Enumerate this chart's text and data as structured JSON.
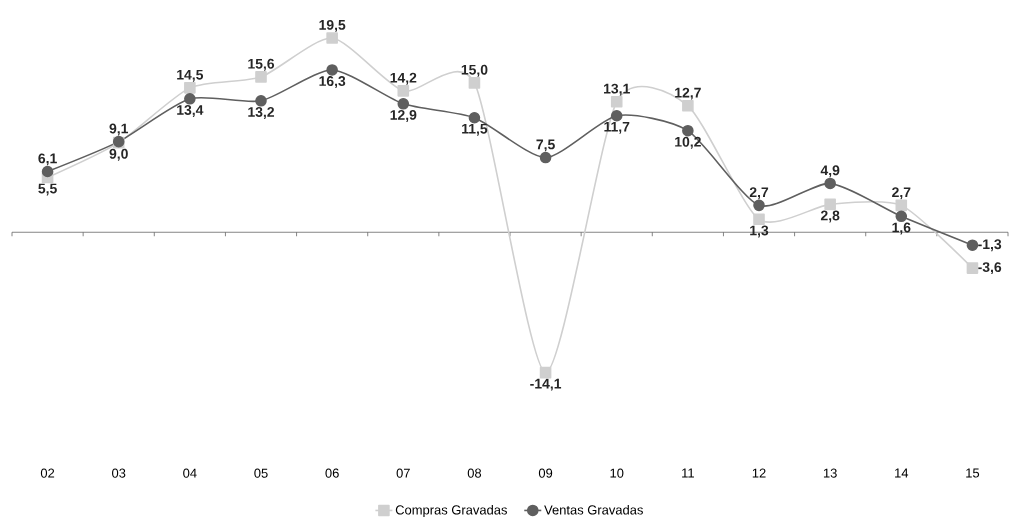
{
  "chart_data": {
    "type": "line",
    "categories": [
      "02",
      "03",
      "04",
      "05",
      "06",
      "07",
      "08",
      "09",
      "10",
      "11",
      "12",
      "13",
      "14",
      "15"
    ],
    "series": [
      {
        "name": "Compras Gravadas",
        "color": "#cfcfcf",
        "marker": "square",
        "values": [
          5.5,
          9.0,
          14.5,
          15.6,
          19.5,
          14.2,
          15.0,
          -14.1,
          13.1,
          12.7,
          1.3,
          2.8,
          2.7,
          -3.6
        ],
        "value_labels": [
          "5,5",
          "9,0",
          "14,5",
          "15,6",
          "19,5",
          "14,2",
          "15,0",
          "-14,1",
          "13,1",
          "12,7",
          "1,3",
          "2,8",
          "2,7",
          "-3,6"
        ]
      },
      {
        "name": "Ventas Gravadas",
        "color": "#5f5f5f",
        "marker": "circle",
        "values": [
          6.1,
          9.1,
          13.4,
          13.2,
          16.3,
          12.9,
          11.5,
          7.5,
          11.7,
          10.2,
          2.7,
          4.9,
          1.6,
          -1.3
        ],
        "value_labels": [
          "6,1",
          "9,1",
          "13,4",
          "13,2",
          "16,3",
          "12,9",
          "11,5",
          "7,5",
          "11,7",
          "10,2",
          "2,7",
          "4,9",
          "1,6",
          "-1,3"
        ]
      }
    ],
    "legend": "bottom",
    "grid": false
  }
}
